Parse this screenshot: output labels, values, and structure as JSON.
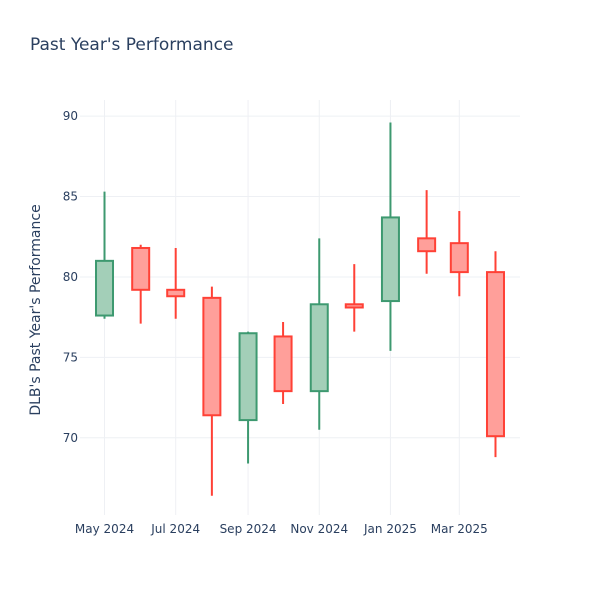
{
  "chart_data": {
    "type": "candlestick",
    "title": "Past Year's Performance",
    "xlabel": "",
    "ylabel": "DLB's Past Year's Performance",
    "ylim": [
      65.2,
      91
    ],
    "xlim": [
      "2024-04-10",
      "2025-04-22"
    ],
    "grid": true,
    "legend": "none",
    "y_ticks": [
      70,
      75,
      80,
      85,
      90
    ],
    "x_ticks": [
      {
        "date": "2024-05-01",
        "label": "May 2024"
      },
      {
        "date": "2024-07-01",
        "label": "Jul 2024"
      },
      {
        "date": "2024-09-01",
        "label": "Sep 2024"
      },
      {
        "date": "2024-11-01",
        "label": "Nov 2024"
      },
      {
        "date": "2025-01-01",
        "label": "Jan 2025"
      },
      {
        "date": "2025-03-01",
        "label": "Mar 2025"
      }
    ],
    "colors": {
      "increasing_line": "#3d9970",
      "increasing_fill": "#a3cfb8",
      "decreasing_line": "#ff4136",
      "decreasing_fill": "#ff9f9a"
    },
    "candles": [
      {
        "date": "2024-05-01",
        "open": 77.6,
        "high": 85.3,
        "low": 77.4,
        "close": 81.0
      },
      {
        "date": "2024-06-01",
        "open": 81.8,
        "high": 82.0,
        "low": 77.1,
        "close": 79.2
      },
      {
        "date": "2024-07-01",
        "open": 79.2,
        "high": 81.8,
        "low": 77.4,
        "close": 78.8
      },
      {
        "date": "2024-08-01",
        "open": 78.7,
        "high": 79.4,
        "low": 66.4,
        "close": 71.4
      },
      {
        "date": "2024-09-01",
        "open": 71.1,
        "high": 76.6,
        "low": 68.4,
        "close": 76.5
      },
      {
        "date": "2024-10-01",
        "open": 76.3,
        "high": 77.2,
        "low": 72.1,
        "close": 72.9
      },
      {
        "date": "2024-11-01",
        "open": 72.9,
        "high": 82.4,
        "low": 70.5,
        "close": 78.3
      },
      {
        "date": "2024-12-01",
        "open": 78.3,
        "high": 80.8,
        "low": 76.6,
        "close": 78.1
      },
      {
        "date": "2025-01-01",
        "open": 78.5,
        "high": 89.6,
        "low": 75.4,
        "close": 83.7
      },
      {
        "date": "2025-02-01",
        "open": 82.4,
        "high": 85.4,
        "low": 80.2,
        "close": 81.6
      },
      {
        "date": "2025-03-01",
        "open": 82.1,
        "high": 84.1,
        "low": 78.8,
        "close": 80.3
      },
      {
        "date": "2025-04-01",
        "open": 80.3,
        "high": 81.6,
        "low": 68.8,
        "close": 70.1
      }
    ]
  }
}
